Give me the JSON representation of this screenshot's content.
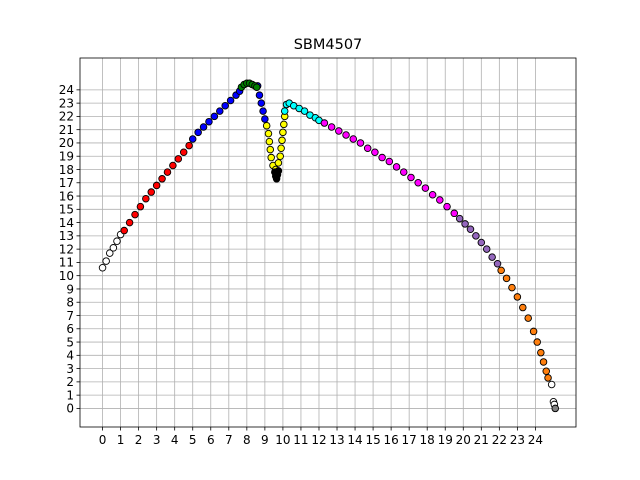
{
  "chart_data": {
    "type": "scatter",
    "title": "SBM4507",
    "xlabel": "",
    "ylabel": "",
    "xlim": [
      -1.25,
      26.25
    ],
    "ylim": [
      -1.4,
      26.4
    ],
    "x_ticks": [
      0,
      1,
      2,
      3,
      4,
      5,
      6,
      7,
      8,
      9,
      10,
      11,
      12,
      13,
      14,
      15,
      16,
      17,
      18,
      19,
      20,
      21,
      22,
      23,
      24
    ],
    "y_ticks": [
      0,
      1,
      2,
      3,
      4,
      5,
      6,
      7,
      8,
      9,
      10,
      11,
      12,
      13,
      14,
      15,
      16,
      17,
      18,
      19,
      20,
      21,
      22,
      23,
      24
    ],
    "grid": true,
    "series": [
      {
        "name": "white",
        "color": "#ffffff",
        "points": [
          [
            0.0,
            10.6
          ],
          [
            0.2,
            11.1
          ],
          [
            0.4,
            11.7
          ],
          [
            0.6,
            12.1
          ],
          [
            0.8,
            12.6
          ],
          [
            1.0,
            13.1
          ],
          [
            24.9,
            1.8
          ],
          [
            25.0,
            0.5
          ],
          [
            25.05,
            0.3
          ]
        ]
      },
      {
        "name": "red",
        "color": "#ff0000",
        "points": [
          [
            1.2,
            13.4
          ],
          [
            1.5,
            14.0
          ],
          [
            1.8,
            14.6
          ],
          [
            2.1,
            15.2
          ],
          [
            2.4,
            15.8
          ],
          [
            2.7,
            16.3
          ],
          [
            3.0,
            16.8
          ],
          [
            3.3,
            17.3
          ],
          [
            3.6,
            17.8
          ],
          [
            3.9,
            18.3
          ],
          [
            4.2,
            18.8
          ],
          [
            4.5,
            19.3
          ],
          [
            4.8,
            19.8
          ]
        ]
      },
      {
        "name": "blue",
        "color": "#0000ff",
        "points": [
          [
            5.0,
            20.3
          ],
          [
            5.3,
            20.8
          ],
          [
            5.6,
            21.2
          ],
          [
            5.9,
            21.6
          ],
          [
            6.2,
            22.0
          ],
          [
            6.5,
            22.4
          ],
          [
            6.8,
            22.8
          ],
          [
            7.1,
            23.2
          ],
          [
            7.4,
            23.6
          ],
          [
            7.6,
            23.9
          ],
          [
            8.6,
            24.3
          ],
          [
            8.7,
            23.6
          ],
          [
            8.8,
            23.0
          ],
          [
            8.9,
            22.4
          ],
          [
            9.0,
            21.8
          ]
        ]
      },
      {
        "name": "green",
        "color": "#008000",
        "points": [
          [
            7.7,
            24.2
          ],
          [
            7.85,
            24.4
          ],
          [
            8.0,
            24.5
          ],
          [
            8.15,
            24.5
          ],
          [
            8.3,
            24.4
          ],
          [
            8.45,
            24.3
          ],
          [
            8.55,
            24.2
          ]
        ]
      },
      {
        "name": "yellow",
        "color": "#ffff00",
        "points": [
          [
            9.1,
            21.3
          ],
          [
            9.2,
            20.7
          ],
          [
            9.25,
            20.1
          ],
          [
            9.3,
            19.5
          ],
          [
            9.35,
            18.9
          ],
          [
            9.45,
            18.3
          ],
          [
            9.6,
            18.0
          ],
          [
            9.75,
            18.5
          ],
          [
            9.85,
            19.0
          ],
          [
            9.9,
            19.6
          ],
          [
            9.95,
            20.2
          ],
          [
            10.0,
            20.8
          ],
          [
            10.05,
            21.4
          ],
          [
            10.1,
            22.0
          ]
        ]
      },
      {
        "name": "black",
        "color": "#000000",
        "points": [
          [
            9.6,
            17.5
          ],
          [
            9.65,
            17.3
          ],
          [
            9.7,
            17.6
          ],
          [
            9.75,
            17.9
          ],
          [
            9.55,
            17.8
          ]
        ]
      },
      {
        "name": "cyan",
        "color": "#00ffff",
        "points": [
          [
            10.1,
            22.4
          ],
          [
            10.2,
            22.9
          ],
          [
            10.35,
            23.0
          ],
          [
            10.6,
            22.8
          ],
          [
            10.9,
            22.6
          ],
          [
            11.2,
            22.4
          ],
          [
            11.5,
            22.1
          ],
          [
            11.8,
            21.9
          ],
          [
            12.0,
            21.7
          ]
        ]
      },
      {
        "name": "magenta",
        "color": "#ff00ff",
        "points": [
          [
            12.3,
            21.5
          ],
          [
            12.7,
            21.2
          ],
          [
            13.1,
            20.9
          ],
          [
            13.5,
            20.6
          ],
          [
            13.9,
            20.3
          ],
          [
            14.3,
            20.0
          ],
          [
            14.7,
            19.6
          ],
          [
            15.1,
            19.3
          ],
          [
            15.5,
            18.9
          ],
          [
            15.9,
            18.6
          ],
          [
            16.3,
            18.2
          ],
          [
            16.7,
            17.8
          ],
          [
            17.1,
            17.4
          ],
          [
            17.5,
            17.0
          ],
          [
            17.9,
            16.6
          ],
          [
            18.3,
            16.1
          ],
          [
            18.7,
            15.7
          ],
          [
            19.1,
            15.2
          ],
          [
            19.5,
            14.7
          ]
        ]
      },
      {
        "name": "purple",
        "color": "#9467bd",
        "points": [
          [
            19.8,
            14.3
          ],
          [
            20.1,
            13.9
          ],
          [
            20.4,
            13.5
          ],
          [
            20.7,
            13.0
          ],
          [
            21.0,
            12.5
          ],
          [
            21.3,
            12.0
          ],
          [
            21.6,
            11.4
          ],
          [
            21.9,
            10.9
          ]
        ]
      },
      {
        "name": "orange",
        "color": "#ff7f0e",
        "points": [
          [
            22.1,
            10.4
          ],
          [
            22.4,
            9.8
          ],
          [
            22.7,
            9.1
          ],
          [
            23.0,
            8.4
          ],
          [
            23.3,
            7.6
          ],
          [
            23.6,
            6.8
          ],
          [
            23.9,
            5.8
          ],
          [
            24.1,
            5.0
          ],
          [
            24.3,
            4.2
          ],
          [
            24.45,
            3.5
          ],
          [
            24.6,
            2.8
          ],
          [
            24.7,
            2.3
          ]
        ]
      },
      {
        "name": "gray",
        "color": "#808080",
        "points": [
          [
            25.1,
            0.0
          ]
        ]
      }
    ]
  }
}
